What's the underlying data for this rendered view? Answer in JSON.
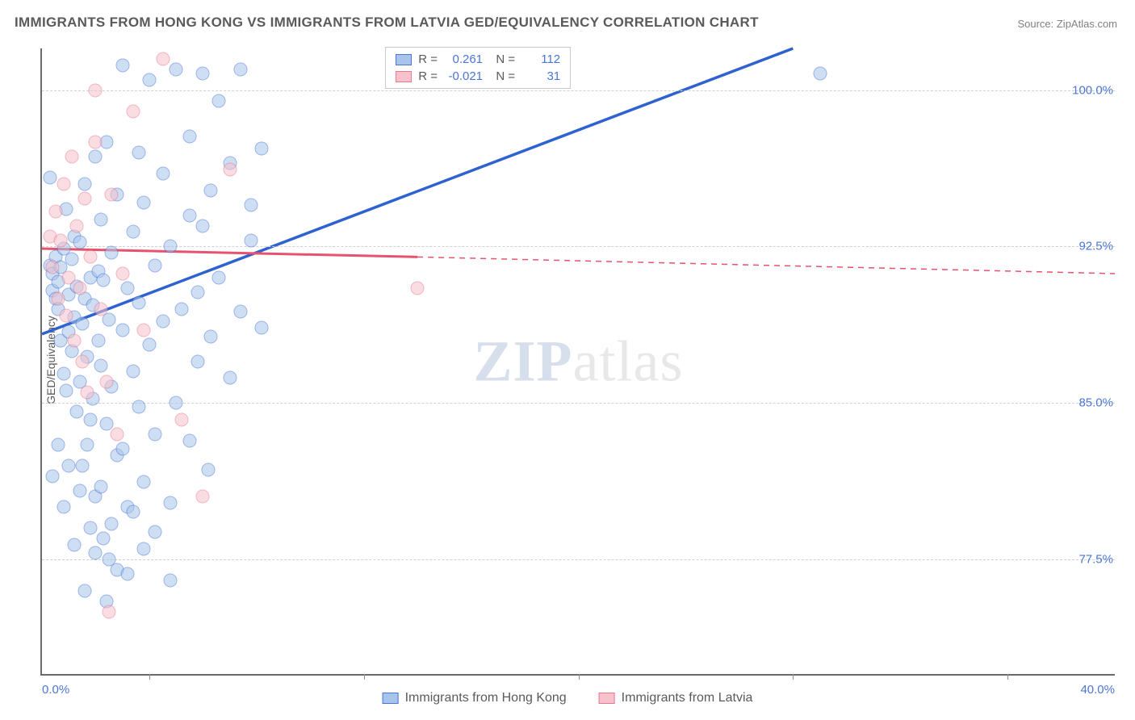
{
  "title": "IMMIGRANTS FROM HONG KONG VS IMMIGRANTS FROM LATVIA GED/EQUIVALENCY CORRELATION CHART",
  "source": "Source: ZipAtlas.com",
  "ylabel": "GED/Equivalency",
  "watermark_a": "ZIP",
  "watermark_b": "atlas",
  "xlim": [
    0,
    40
  ],
  "ylim": [
    72,
    102
  ],
  "ytick_labels": [
    "100.0%",
    "92.5%",
    "85.0%",
    "77.5%"
  ],
  "ytick_vals": [
    100,
    92.5,
    85,
    77.5
  ],
  "xtick_labels": [
    "0.0%",
    "40.0%"
  ],
  "xtick_vals": [
    0,
    40
  ],
  "minor_xtick_vals": [
    4,
    12,
    20,
    28,
    36
  ],
  "series": {
    "blue": {
      "label": "Immigrants from Hong Kong",
      "fill": "#a7c4ea",
      "stroke": "#4a76d4",
      "line_color": "#2d62d0",
      "R": "0.261",
      "N": "112",
      "trend": {
        "x1": 0,
        "y1": 88.3,
        "x2": 28,
        "y2": 102
      },
      "points": [
        [
          0.3,
          91.6
        ],
        [
          0.4,
          90.4
        ],
        [
          0.4,
          91.2
        ],
        [
          0.5,
          92.0
        ],
        [
          0.5,
          90.0
        ],
        [
          0.6,
          89.5
        ],
        [
          0.6,
          90.8
        ],
        [
          0.7,
          91.5
        ],
        [
          0.7,
          88.0
        ],
        [
          0.8,
          92.4
        ],
        [
          0.8,
          86.4
        ],
        [
          0.9,
          85.6
        ],
        [
          0.9,
          94.3
        ],
        [
          1.0,
          90.2
        ],
        [
          1.0,
          88.4
        ],
        [
          1.1,
          91.9
        ],
        [
          1.1,
          87.5
        ],
        [
          1.2,
          93.0
        ],
        [
          1.2,
          89.1
        ],
        [
          1.3,
          84.6
        ],
        [
          1.3,
          90.6
        ],
        [
          1.4,
          86.0
        ],
        [
          1.4,
          92.7
        ],
        [
          1.5,
          88.8
        ],
        [
          1.5,
          82.0
        ],
        [
          1.6,
          95.5
        ],
        [
          1.6,
          90.0
        ],
        [
          1.7,
          83.0
        ],
        [
          1.7,
          87.2
        ],
        [
          1.8,
          91.0
        ],
        [
          1.8,
          79.0
        ],
        [
          1.9,
          89.7
        ],
        [
          1.9,
          85.2
        ],
        [
          2.0,
          96.8
        ],
        [
          2.0,
          80.5
        ],
        [
          2.1,
          88.0
        ],
        [
          2.1,
          91.3
        ],
        [
          2.2,
          93.8
        ],
        [
          2.2,
          86.8
        ],
        [
          2.3,
          78.5
        ],
        [
          2.3,
          90.9
        ],
        [
          2.4,
          84.0
        ],
        [
          2.4,
          97.5
        ],
        [
          2.5,
          89.0
        ],
        [
          2.5,
          77.5
        ],
        [
          2.6,
          92.2
        ],
        [
          2.6,
          85.8
        ],
        [
          2.8,
          95.0
        ],
        [
          2.8,
          82.5
        ],
        [
          3.0,
          88.5
        ],
        [
          3.0,
          101.2
        ],
        [
          3.2,
          90.5
        ],
        [
          3.2,
          80.0
        ],
        [
          3.4,
          93.2
        ],
        [
          3.4,
          86.5
        ],
        [
          3.6,
          97.0
        ],
        [
          3.6,
          89.8
        ],
        [
          3.8,
          78.0
        ],
        [
          3.8,
          94.6
        ],
        [
          4.0,
          100.5
        ],
        [
          4.0,
          87.8
        ],
        [
          4.2,
          91.6
        ],
        [
          4.2,
          83.5
        ],
        [
          4.5,
          96.0
        ],
        [
          4.5,
          88.9
        ],
        [
          4.8,
          76.5
        ],
        [
          4.8,
          92.5
        ],
        [
          5.0,
          101.0
        ],
        [
          5.0,
          85.0
        ],
        [
          5.2,
          89.5
        ],
        [
          5.5,
          94.0
        ],
        [
          5.5,
          97.8
        ],
        [
          5.8,
          90.3
        ],
        [
          5.8,
          87.0
        ],
        [
          6.0,
          100.8
        ],
        [
          6.0,
          93.5
        ],
        [
          6.3,
          88.2
        ],
        [
          6.3,
          95.2
        ],
        [
          6.6,
          91.0
        ],
        [
          6.6,
          99.5
        ],
        [
          7.0,
          86.2
        ],
        [
          7.0,
          96.5
        ],
        [
          7.4,
          89.4
        ],
        [
          7.4,
          101.0
        ],
        [
          7.8,
          92.8
        ],
        [
          7.8,
          94.5
        ],
        [
          8.2,
          88.6
        ],
        [
          8.2,
          97.2
        ],
        [
          0.4,
          81.5
        ],
        [
          0.6,
          83.0
        ],
        [
          0.8,
          80.0
        ],
        [
          1.0,
          82.0
        ],
        [
          1.2,
          78.2
        ],
        [
          1.4,
          80.8
        ],
        [
          1.6,
          76.0
        ],
        [
          1.8,
          84.2
        ],
        [
          2.0,
          77.8
        ],
        [
          2.2,
          81.0
        ],
        [
          2.4,
          75.5
        ],
        [
          2.6,
          79.2
        ],
        [
          2.8,
          77.0
        ],
        [
          3.0,
          82.8
        ],
        [
          3.2,
          76.8
        ],
        [
          3.4,
          79.8
        ],
        [
          3.6,
          84.8
        ],
        [
          3.8,
          81.2
        ],
        [
          4.2,
          78.8
        ],
        [
          4.8,
          80.2
        ],
        [
          5.5,
          83.2
        ],
        [
          6.2,
          81.8
        ],
        [
          29.0,
          100.8
        ],
        [
          0.3,
          95.8
        ]
      ]
    },
    "pink": {
      "label": "Immigrants from Latvia",
      "fill": "#f5c2cd",
      "stroke": "#e7798f",
      "line_color": "#e7526f",
      "R": "-0.021",
      "N": "31",
      "trend_solid": {
        "x1": 0,
        "y1": 92.4,
        "x2": 14,
        "y2": 92.0
      },
      "trend_dash": {
        "x1": 14,
        "y1": 92.0,
        "x2": 40,
        "y2": 91.2
      },
      "points": [
        [
          0.3,
          93.0
        ],
        [
          0.4,
          91.5
        ],
        [
          0.5,
          94.2
        ],
        [
          0.6,
          90.0
        ],
        [
          0.7,
          92.8
        ],
        [
          0.8,
          95.5
        ],
        [
          0.9,
          89.2
        ],
        [
          1.0,
          91.0
        ],
        [
          1.1,
          96.8
        ],
        [
          1.2,
          88.0
        ],
        [
          1.3,
          93.5
        ],
        [
          1.4,
          90.5
        ],
        [
          1.5,
          87.0
        ],
        [
          1.6,
          94.8
        ],
        [
          1.7,
          85.5
        ],
        [
          1.8,
          92.0
        ],
        [
          2.0,
          97.5
        ],
        [
          2.2,
          89.5
        ],
        [
          2.4,
          86.0
        ],
        [
          2.6,
          95.0
        ],
        [
          2.8,
          83.5
        ],
        [
          3.0,
          91.2
        ],
        [
          3.4,
          99.0
        ],
        [
          3.8,
          88.5
        ],
        [
          4.5,
          101.5
        ],
        [
          5.2,
          84.2
        ],
        [
          6.0,
          80.5
        ],
        [
          7.0,
          96.2
        ],
        [
          2.0,
          100.0
        ],
        [
          2.5,
          75.0
        ],
        [
          14.0,
          90.5
        ]
      ]
    }
  }
}
